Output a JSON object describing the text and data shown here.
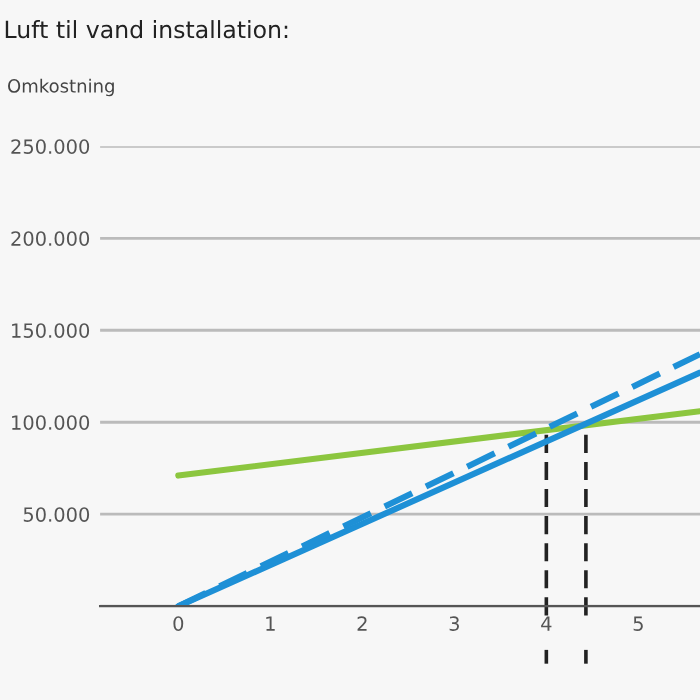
{
  "chart_data": {
    "type": "line",
    "title": "Luft til vand installation:",
    "ylabel": "Omkostning",
    "x": [
      0,
      5.67
    ],
    "series": [
      {
        "color": "#8cc63f",
        "values": [
          71000,
          106000
        ],
        "line_style": "solid"
      },
      {
        "color": "#1e90d6",
        "values": [
          0,
          127000
        ],
        "line_style": "solid"
      },
      {
        "color": "#1e90d6",
        "values": [
          0,
          137000
        ],
        "line_style": "dashed"
      }
    ],
    "xlim": [
      -0.85,
      5.67
    ],
    "ylim": [
      0,
      250000
    ],
    "xticks": [
      0,
      1,
      2,
      3,
      4,
      5
    ],
    "yticks": [
      {
        "value": 0,
        "label": null
      },
      {
        "value": 50000,
        "label": "50.000"
      },
      {
        "value": 100000,
        "label": "100.000"
      },
      {
        "value": 150000,
        "label": "150.000"
      },
      {
        "value": 200000,
        "label": "200.000"
      },
      {
        "value": 250000,
        "label": "250.000"
      }
    ],
    "grid": "y",
    "legend": false,
    "ref_lines": [
      {
        "axis": "x",
        "value": 4,
        "color": "#222222",
        "line_style": "dashed"
      },
      {
        "axis": "x",
        "value": 4.43,
        "color": "#222222",
        "line_style": "dashed"
      }
    ]
  }
}
